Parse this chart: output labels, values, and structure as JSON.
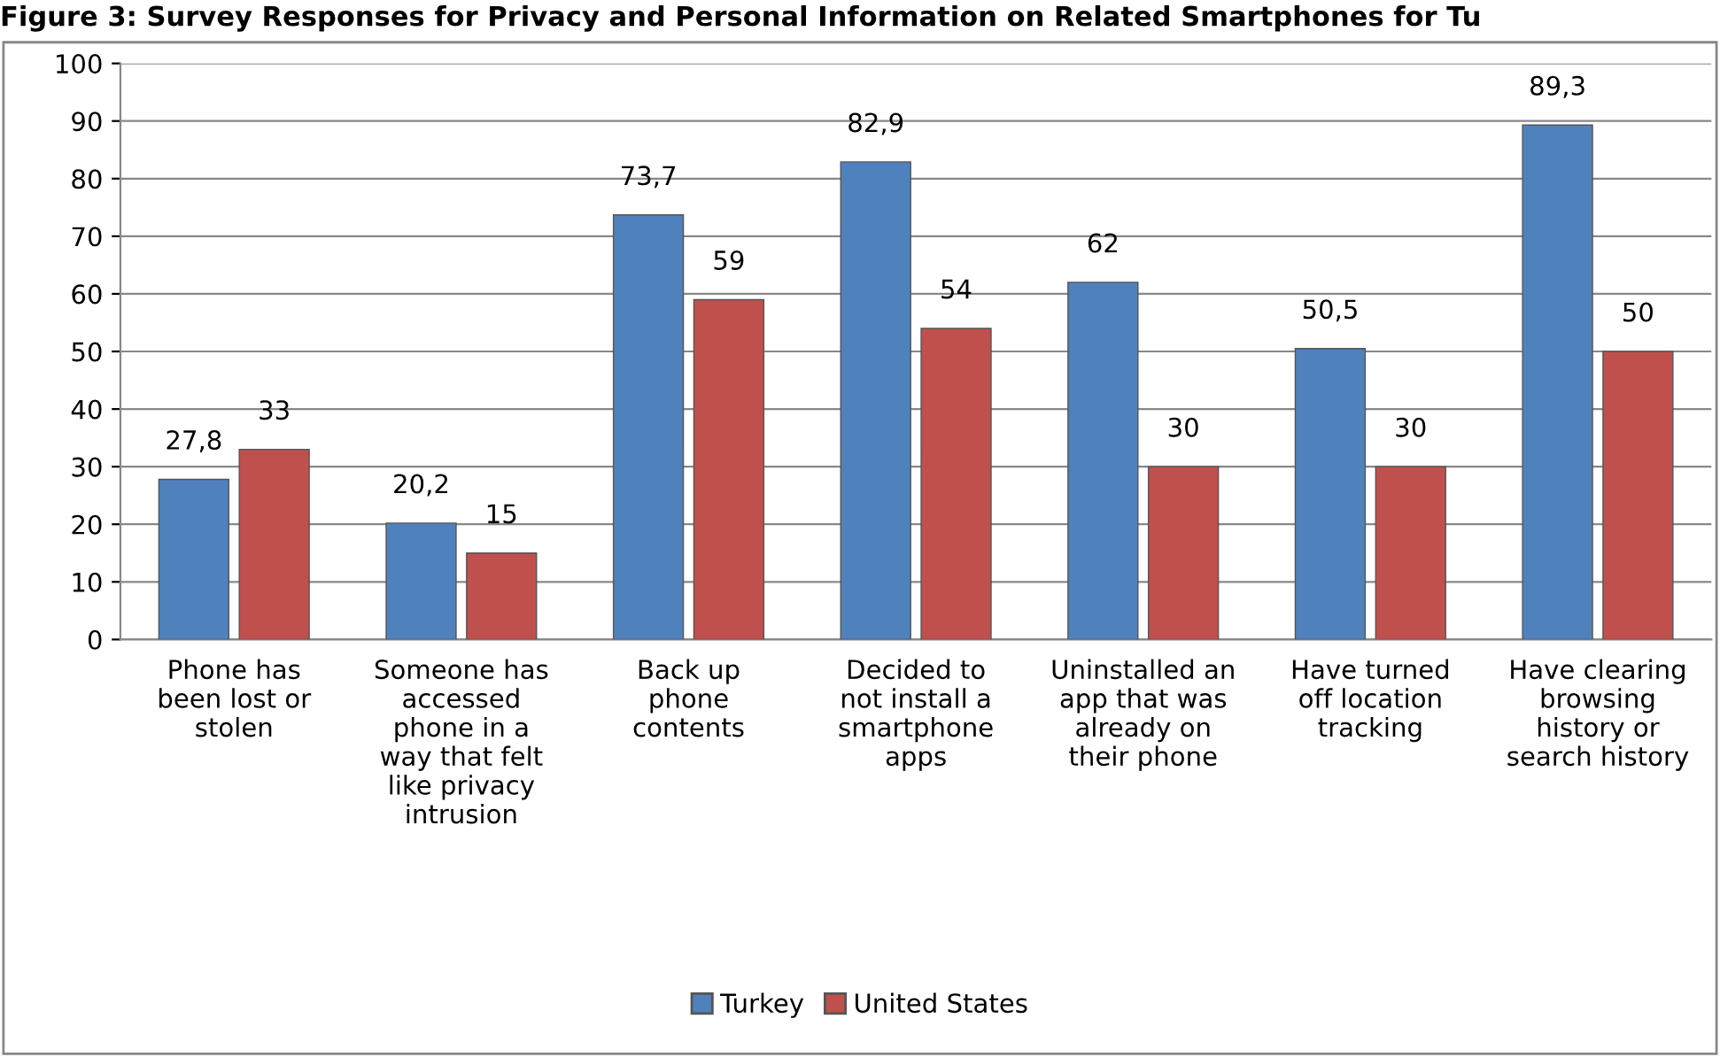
{
  "chart_data": {
    "type": "bar",
    "title": "Figure 3: Survey Responses for Privacy and Personal Information on Related Smartphones for Tu",
    "categories": [
      "Phone has\nbeen lost or\nstolen",
      "Someone has\naccessed\nphone in a\nway that felt\nlike privacy\nintrusion",
      "Back up\nphone\ncontents",
      "Decided to\nnot install a\nsmartphone\napps",
      "Uninstalled an\napp that was\nalready on\ntheir phone",
      "Have turned\noff location\ntracking",
      "Have clearing\nbrowsing\nhistory or\nsearch history"
    ],
    "series": [
      {
        "name": "Turkey",
        "color": "#4f81bd",
        "values": [
          27.8,
          20.2,
          73.7,
          82.9,
          62,
          50.5,
          89.3
        ],
        "value_labels": [
          "27,8",
          "20,2",
          "73,7",
          "82,9",
          "62",
          "50,5",
          "89,3"
        ]
      },
      {
        "name": "United States",
        "color": "#c0504d",
        "values": [
          33,
          15,
          59,
          54,
          30,
          30,
          50
        ],
        "value_labels": [
          "33",
          "15",
          "59",
          "54",
          "30",
          "30",
          "50"
        ]
      }
    ],
    "ylim": [
      0,
      100
    ],
    "yticks": [
      0,
      10,
      20,
      30,
      40,
      50,
      60,
      70,
      80,
      90,
      100
    ],
    "grid": "y",
    "legend": "bottom"
  }
}
